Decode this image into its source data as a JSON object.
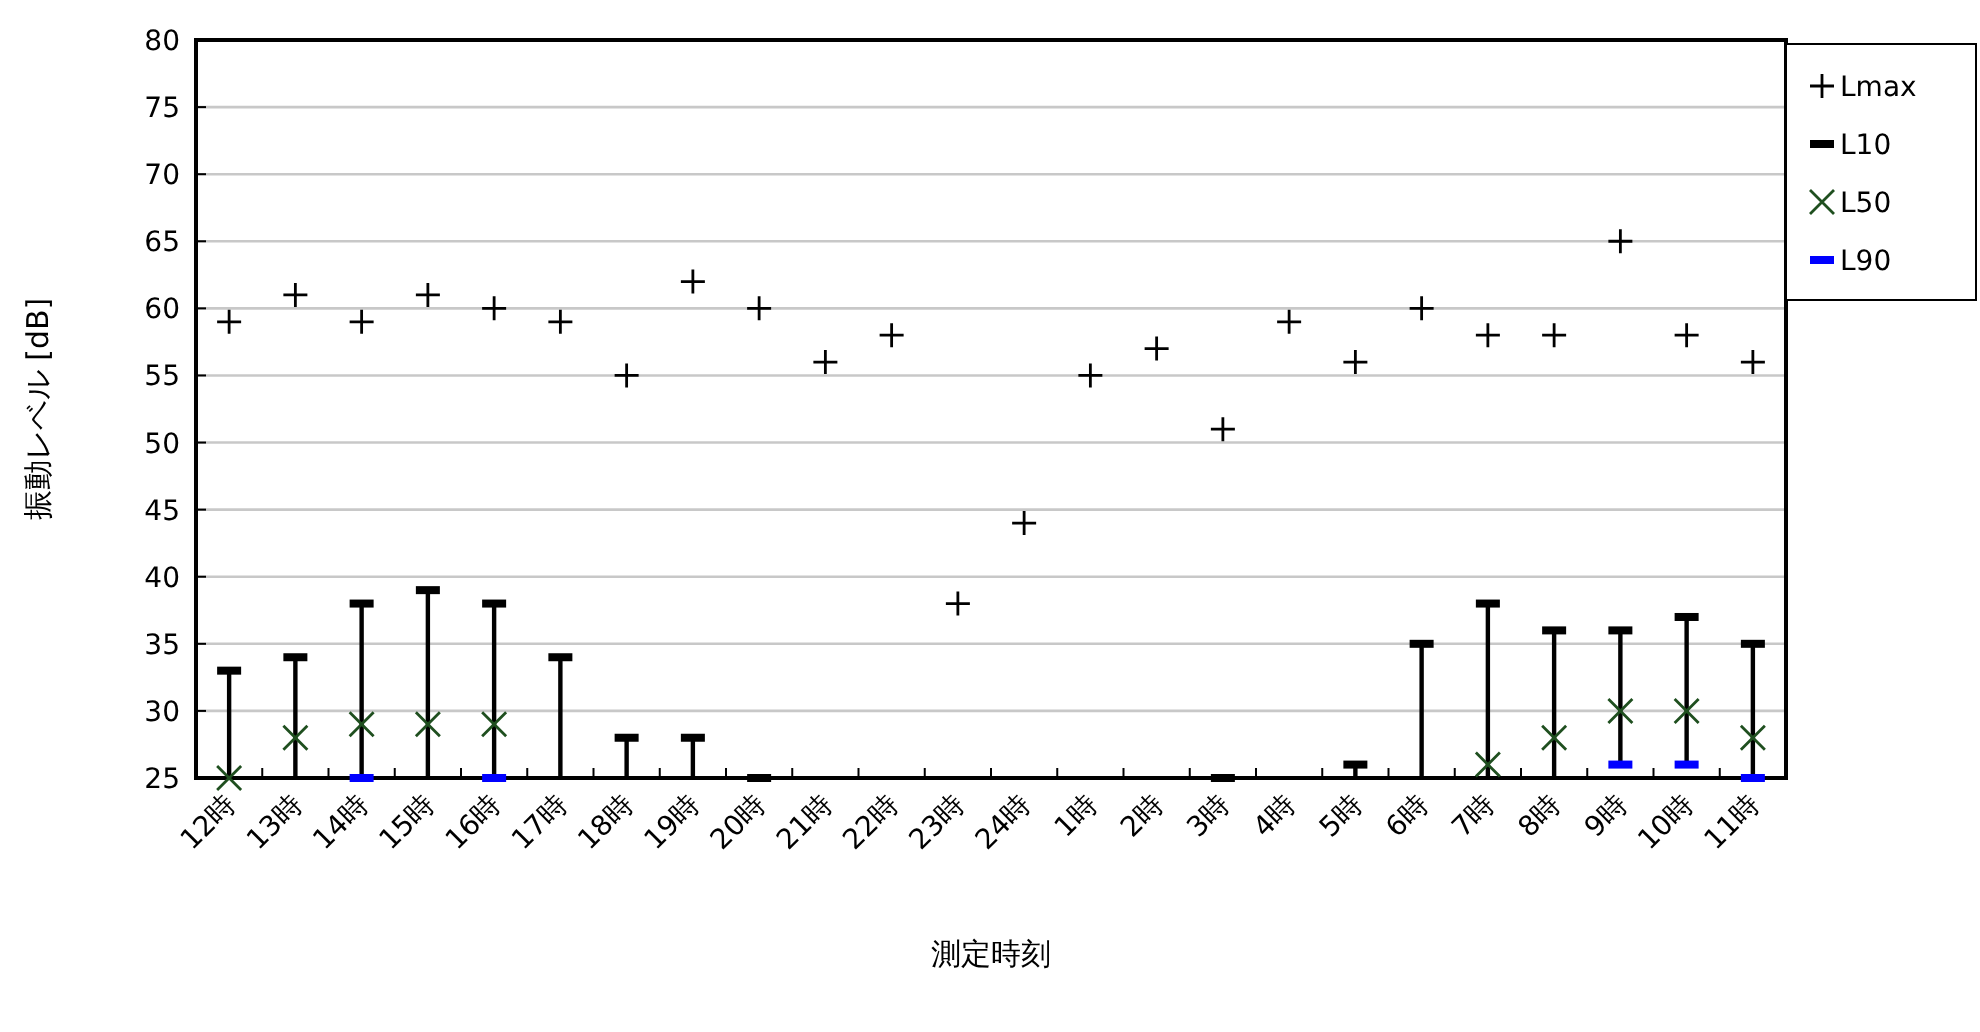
{
  "chart_data": {
    "type": "scatter",
    "xlabel": "測定時刻",
    "ylabel": "振動レベル [dB]",
    "categories": [
      "12時",
      "13時",
      "14時",
      "15時",
      "16時",
      "17時",
      "18時",
      "19時",
      "20時",
      "21時",
      "22時",
      "23時",
      "24時",
      "1時",
      "2時",
      "3時",
      "4時",
      "5時",
      "6時",
      "7時",
      "8時",
      "9時",
      "10時",
      "11時"
    ],
    "ylim": [
      25,
      80
    ],
    "yticks": [
      25,
      30,
      35,
      40,
      45,
      50,
      55,
      60,
      65,
      70,
      75,
      80
    ],
    "grid": "y",
    "legend": "top right",
    "series": [
      {
        "type": "bar",
        "color": "#000000",
        "base": [
          25,
          25,
          25,
          25,
          25,
          25,
          25,
          25,
          null,
          null,
          null,
          null,
          null,
          null,
          null,
          null,
          null,
          25,
          25,
          25,
          25,
          26,
          26,
          25
        ],
        "values": [
          8,
          9,
          13,
          14,
          13,
          9,
          3,
          3,
          null,
          null,
          null,
          null,
          null,
          null,
          null,
          null,
          null,
          1,
          10,
          13,
          11,
          10,
          11,
          10
        ]
      },
      {
        "name": "Lmax",
        "color": "#000000",
        "marker": "plus",
        "values": [
          59,
          61,
          59,
          61,
          60,
          59,
          55,
          62,
          60,
          56,
          58,
          38,
          44,
          55,
          57,
          51,
          59,
          56,
          60,
          58,
          58,
          65,
          58,
          56
        ]
      },
      {
        "name": "L10",
        "color": "#000000",
        "values": [
          33,
          34,
          38,
          39,
          38,
          34,
          28,
          28,
          25,
          null,
          null,
          null,
          null,
          null,
          null,
          25,
          null,
          26,
          35,
          38,
          36,
          36,
          37,
          35
        ]
      },
      {
        "name": "L50",
        "color": "#1f4f1f",
        "marker": "cross",
        "values": [
          25,
          28,
          29,
          29,
          29,
          null,
          null,
          null,
          null,
          null,
          null,
          null,
          null,
          null,
          null,
          null,
          null,
          null,
          null,
          26,
          28,
          30,
          30,
          28
        ]
      },
      {
        "name": "L90",
        "color": "#0000ff",
        "values": [
          null,
          null,
          25,
          null,
          25,
          null,
          null,
          null,
          null,
          null,
          null,
          null,
          null,
          null,
          null,
          null,
          null,
          null,
          null,
          null,
          null,
          26,
          26,
          25
        ]
      }
    ]
  }
}
